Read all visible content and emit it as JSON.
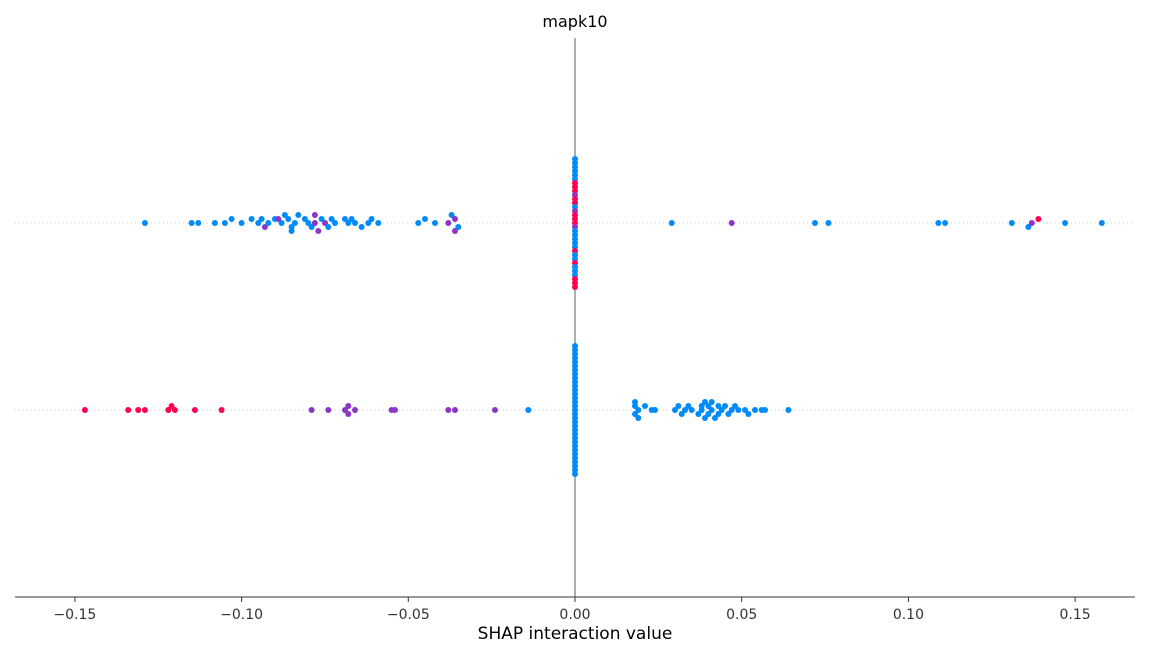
{
  "chart_data": {
    "type": "scatter",
    "title": "mapk10",
    "xlabel": "SHAP interaction value",
    "xlim": [
      -0.168,
      0.168
    ],
    "xticks": [
      -0.15,
      -0.1,
      -0.05,
      0.0,
      0.05,
      0.1,
      0.15
    ],
    "xtick_labels": [
      "−0.15",
      "−0.10",
      "−0.05",
      "0.00",
      "0.05",
      "0.10",
      "0.15"
    ],
    "grid": false,
    "zero_line": true,
    "colors": {
      "low": "#008bfb",
      "mid": "#8b36c4",
      "high": "#ff0052",
      "zero_line": "#999999",
      "row_line": "#cccccc"
    },
    "rows": [
      {
        "points": [
          {
            "x": -0.129,
            "o": 0,
            "c": "low"
          },
          {
            "x": -0.115,
            "o": 0,
            "c": "low"
          },
          {
            "x": -0.113,
            "o": 0,
            "c": "low"
          },
          {
            "x": -0.108,
            "o": 0,
            "c": "low"
          },
          {
            "x": -0.105,
            "o": 0,
            "c": "low"
          },
          {
            "x": -0.103,
            "o": -1,
            "c": "low"
          },
          {
            "x": -0.1,
            "o": 0,
            "c": "low"
          },
          {
            "x": -0.097,
            "o": -1,
            "c": "low"
          },
          {
            "x": -0.095,
            "o": 0,
            "c": "low"
          },
          {
            "x": -0.094,
            "o": -1,
            "c": "low"
          },
          {
            "x": -0.093,
            "o": 1,
            "c": "mid"
          },
          {
            "x": -0.092,
            "o": 0,
            "c": "low"
          },
          {
            "x": -0.09,
            "o": -1,
            "c": "low"
          },
          {
            "x": -0.089,
            "o": -1,
            "c": "mid"
          },
          {
            "x": -0.088,
            "o": 0,
            "c": "low"
          },
          {
            "x": -0.087,
            "o": -2,
            "c": "low"
          },
          {
            "x": -0.086,
            "o": -1,
            "c": "low"
          },
          {
            "x": -0.085,
            "o": 1,
            "c": "low"
          },
          {
            "x": -0.085,
            "o": 2,
            "c": "low"
          },
          {
            "x": -0.084,
            "o": 0,
            "c": "low"
          },
          {
            "x": -0.083,
            "o": -2,
            "c": "low"
          },
          {
            "x": -0.081,
            "o": -1,
            "c": "low"
          },
          {
            "x": -0.08,
            "o": 0,
            "c": "low"
          },
          {
            "x": -0.079,
            "o": 1,
            "c": "low"
          },
          {
            "x": -0.078,
            "o": -2,
            "c": "mid"
          },
          {
            "x": -0.078,
            "o": 0,
            "c": "mid"
          },
          {
            "x": -0.077,
            "o": 2,
            "c": "mid"
          },
          {
            "x": -0.076,
            "o": -1,
            "c": "low"
          },
          {
            "x": -0.075,
            "o": 0,
            "c": "mid"
          },
          {
            "x": -0.074,
            "o": 1,
            "c": "low"
          },
          {
            "x": -0.073,
            "o": -1,
            "c": "low"
          },
          {
            "x": -0.072,
            "o": 0,
            "c": "low"
          },
          {
            "x": -0.069,
            "o": -1,
            "c": "low"
          },
          {
            "x": -0.068,
            "o": 0,
            "c": "low"
          },
          {
            "x": -0.067,
            "o": -1,
            "c": "low"
          },
          {
            "x": -0.066,
            "o": 0,
            "c": "low"
          },
          {
            "x": -0.064,
            "o": 1,
            "c": "low"
          },
          {
            "x": -0.062,
            "o": 0,
            "c": "low"
          },
          {
            "x": -0.061,
            "o": -1,
            "c": "low"
          },
          {
            "x": -0.059,
            "o": 0,
            "c": "low"
          },
          {
            "x": -0.047,
            "o": 0,
            "c": "low"
          },
          {
            "x": -0.045,
            "o": -1,
            "c": "low"
          },
          {
            "x": -0.042,
            "o": 0,
            "c": "low"
          },
          {
            "x": -0.038,
            "o": 0,
            "c": "mid"
          },
          {
            "x": -0.037,
            "o": -2,
            "c": "low"
          },
          {
            "x": -0.036,
            "o": -1,
            "c": "mid"
          },
          {
            "x": -0.036,
            "o": 2,
            "c": "mid"
          },
          {
            "x": -0.035,
            "o": 1,
            "c": "low"
          },
          {
            "x": 0.0,
            "o": -16,
            "c": "low"
          },
          {
            "x": 0.0,
            "o": -15,
            "c": "low"
          },
          {
            "x": 0.0,
            "o": -14,
            "c": "low"
          },
          {
            "x": 0.0,
            "o": -13,
            "c": "low"
          },
          {
            "x": 0.0,
            "o": -12,
            "c": "low"
          },
          {
            "x": 0.0,
            "o": -11,
            "c": "low"
          },
          {
            "x": 0.0,
            "o": -10,
            "c": "high"
          },
          {
            "x": 0.0,
            "o": -9,
            "c": "high"
          },
          {
            "x": 0.0,
            "o": -8,
            "c": "high"
          },
          {
            "x": 0.0,
            "o": -7,
            "c": "mid"
          },
          {
            "x": 0.0,
            "o": -6,
            "c": "high"
          },
          {
            "x": 0.0,
            "o": -5,
            "c": "high"
          },
          {
            "x": 0.0,
            "o": -4,
            "c": "low"
          },
          {
            "x": 0.0,
            "o": -3,
            "c": "mid"
          },
          {
            "x": 0.0,
            "o": -2,
            "c": "high"
          },
          {
            "x": 0.0,
            "o": -1,
            "c": "high"
          },
          {
            "x": 0.0,
            "o": 0,
            "c": "high"
          },
          {
            "x": 0.0,
            "o": 1,
            "c": "mid"
          },
          {
            "x": 0.0,
            "o": 2,
            "c": "low"
          },
          {
            "x": 0.0,
            "o": 3,
            "c": "low"
          },
          {
            "x": 0.0,
            "o": 4,
            "c": "low"
          },
          {
            "x": 0.0,
            "o": 5,
            "c": "low"
          },
          {
            "x": 0.0,
            "o": 6,
            "c": "low"
          },
          {
            "x": 0.0,
            "o": 7,
            "c": "high"
          },
          {
            "x": 0.0,
            "o": 8,
            "c": "low"
          },
          {
            "x": 0.0,
            "o": 9,
            "c": "low"
          },
          {
            "x": 0.0,
            "o": 10,
            "c": "high"
          },
          {
            "x": 0.0,
            "o": 11,
            "c": "low"
          },
          {
            "x": 0.0,
            "o": 12,
            "c": "low"
          },
          {
            "x": 0.0,
            "o": 13,
            "c": "low"
          },
          {
            "x": 0.0,
            "o": 14,
            "c": "high"
          },
          {
            "x": 0.0,
            "o": 15,
            "c": "high"
          },
          {
            "x": 0.0,
            "o": 16,
            "c": "high"
          },
          {
            "x": 0.029,
            "o": 0,
            "c": "low"
          },
          {
            "x": 0.047,
            "o": 0,
            "c": "mid"
          },
          {
            "x": 0.072,
            "o": 0,
            "c": "low"
          },
          {
            "x": 0.076,
            "o": 0,
            "c": "low"
          },
          {
            "x": 0.109,
            "o": 0,
            "c": "low"
          },
          {
            "x": 0.111,
            "o": 0,
            "c": "low"
          },
          {
            "x": 0.131,
            "o": 0,
            "c": "low"
          },
          {
            "x": 0.136,
            "o": 1,
            "c": "low"
          },
          {
            "x": 0.137,
            "o": 0,
            "c": "mid"
          },
          {
            "x": 0.139,
            "o": -1,
            "c": "high"
          },
          {
            "x": 0.147,
            "o": 0,
            "c": "low"
          },
          {
            "x": 0.158,
            "o": 0,
            "c": "low"
          }
        ]
      },
      {
        "points": [
          {
            "x": -0.147,
            "o": 0,
            "c": "high"
          },
          {
            "x": -0.134,
            "o": 0,
            "c": "high"
          },
          {
            "x": -0.131,
            "o": 0,
            "c": "high"
          },
          {
            "x": -0.129,
            "o": 0,
            "c": "high"
          },
          {
            "x": -0.122,
            "o": 0,
            "c": "high"
          },
          {
            "x": -0.121,
            "o": -1,
            "c": "high"
          },
          {
            "x": -0.12,
            "o": 0,
            "c": "high"
          },
          {
            "x": -0.114,
            "o": 0,
            "c": "high"
          },
          {
            "x": -0.106,
            "o": 0,
            "c": "high"
          },
          {
            "x": -0.079,
            "o": 0,
            "c": "mid"
          },
          {
            "x": -0.074,
            "o": 0,
            "c": "mid"
          },
          {
            "x": -0.069,
            "o": 0,
            "c": "mid"
          },
          {
            "x": -0.068,
            "o": -1,
            "c": "mid"
          },
          {
            "x": -0.068,
            "o": 1,
            "c": "mid"
          },
          {
            "x": -0.066,
            "o": 0,
            "c": "mid"
          },
          {
            "x": -0.055,
            "o": 0,
            "c": "mid"
          },
          {
            "x": -0.054,
            "o": 0,
            "c": "mid"
          },
          {
            "x": -0.038,
            "o": 0,
            "c": "mid"
          },
          {
            "x": -0.036,
            "o": 0,
            "c": "mid"
          },
          {
            "x": -0.024,
            "o": 0,
            "c": "mid"
          },
          {
            "x": -0.014,
            "o": 0,
            "c": "low"
          },
          {
            "x": 0.0,
            "o": -16,
            "c": "low"
          },
          {
            "x": 0.0,
            "o": -15,
            "c": "low"
          },
          {
            "x": 0.0,
            "o": -14,
            "c": "low"
          },
          {
            "x": 0.0,
            "o": -13,
            "c": "low"
          },
          {
            "x": 0.0,
            "o": -12,
            "c": "low"
          },
          {
            "x": 0.0,
            "o": -11,
            "c": "low"
          },
          {
            "x": 0.0,
            "o": -10,
            "c": "low"
          },
          {
            "x": 0.0,
            "o": -9,
            "c": "low"
          },
          {
            "x": 0.0,
            "o": -8,
            "c": "low"
          },
          {
            "x": 0.0,
            "o": -7,
            "c": "low"
          },
          {
            "x": 0.0,
            "o": -6,
            "c": "low"
          },
          {
            "x": 0.0,
            "o": -5,
            "c": "low"
          },
          {
            "x": 0.0,
            "o": -4,
            "c": "low"
          },
          {
            "x": 0.0,
            "o": -3,
            "c": "low"
          },
          {
            "x": 0.0,
            "o": -2,
            "c": "low"
          },
          {
            "x": 0.0,
            "o": -1,
            "c": "low"
          },
          {
            "x": 0.0,
            "o": 0,
            "c": "low"
          },
          {
            "x": 0.0,
            "o": 1,
            "c": "low"
          },
          {
            "x": 0.0,
            "o": 2,
            "c": "low"
          },
          {
            "x": 0.0,
            "o": 3,
            "c": "low"
          },
          {
            "x": 0.0,
            "o": 4,
            "c": "low"
          },
          {
            "x": 0.0,
            "o": 5,
            "c": "low"
          },
          {
            "x": 0.0,
            "o": 6,
            "c": "low"
          },
          {
            "x": 0.0,
            "o": 7,
            "c": "low"
          },
          {
            "x": 0.0,
            "o": 8,
            "c": "low"
          },
          {
            "x": 0.0,
            "o": 9,
            "c": "low"
          },
          {
            "x": 0.0,
            "o": 10,
            "c": "low"
          },
          {
            "x": 0.0,
            "o": 11,
            "c": "low"
          },
          {
            "x": 0.0,
            "o": 12,
            "c": "low"
          },
          {
            "x": 0.0,
            "o": 13,
            "c": "low"
          },
          {
            "x": 0.0,
            "o": 14,
            "c": "low"
          },
          {
            "x": 0.0,
            "o": 15,
            "c": "low"
          },
          {
            "x": 0.0,
            "o": 16,
            "c": "low"
          },
          {
            "x": 0.018,
            "o": -1,
            "c": "low"
          },
          {
            "x": 0.018,
            "o": 1,
            "c": "low"
          },
          {
            "x": 0.018,
            "o": -2,
            "c": "low"
          },
          {
            "x": 0.019,
            "o": 0,
            "c": "low"
          },
          {
            "x": 0.019,
            "o": 2,
            "c": "low"
          },
          {
            "x": 0.021,
            "o": -1,
            "c": "low"
          },
          {
            "x": 0.023,
            "o": 0,
            "c": "low"
          },
          {
            "x": 0.024,
            "o": 0,
            "c": "low"
          },
          {
            "x": 0.03,
            "o": 0,
            "c": "low"
          },
          {
            "x": 0.031,
            "o": -1,
            "c": "low"
          },
          {
            "x": 0.032,
            "o": 1,
            "c": "low"
          },
          {
            "x": 0.033,
            "o": 0,
            "c": "low"
          },
          {
            "x": 0.034,
            "o": -1,
            "c": "low"
          },
          {
            "x": 0.035,
            "o": 0,
            "c": "low"
          },
          {
            "x": 0.037,
            "o": 1,
            "c": "low"
          },
          {
            "x": 0.038,
            "o": -1,
            "c": "low"
          },
          {
            "x": 0.038,
            "o": 0,
            "c": "low"
          },
          {
            "x": 0.039,
            "o": 2,
            "c": "low"
          },
          {
            "x": 0.039,
            "o": -2,
            "c": "low"
          },
          {
            "x": 0.04,
            "o": 1,
            "c": "low"
          },
          {
            "x": 0.04,
            "o": -1,
            "c": "low"
          },
          {
            "x": 0.041,
            "o": 0,
            "c": "low"
          },
          {
            "x": 0.041,
            "o": -2,
            "c": "low"
          },
          {
            "x": 0.042,
            "o": 2,
            "c": "low"
          },
          {
            "x": 0.043,
            "o": 1,
            "c": "low"
          },
          {
            "x": 0.043,
            "o": -1,
            "c": "low"
          },
          {
            "x": 0.044,
            "o": 0,
            "c": "low"
          },
          {
            "x": 0.045,
            "o": -1,
            "c": "low"
          },
          {
            "x": 0.046,
            "o": 1,
            "c": "low"
          },
          {
            "x": 0.047,
            "o": 0,
            "c": "low"
          },
          {
            "x": 0.048,
            "o": -1,
            "c": "low"
          },
          {
            "x": 0.049,
            "o": 0,
            "c": "low"
          },
          {
            "x": 0.051,
            "o": 0,
            "c": "low"
          },
          {
            "x": 0.052,
            "o": 1,
            "c": "low"
          },
          {
            "x": 0.054,
            "o": 0,
            "c": "low"
          },
          {
            "x": 0.056,
            "o": 0,
            "c": "low"
          },
          {
            "x": 0.057,
            "o": 0,
            "c": "low"
          },
          {
            "x": 0.064,
            "o": 0,
            "c": "low"
          }
        ]
      }
    ]
  }
}
